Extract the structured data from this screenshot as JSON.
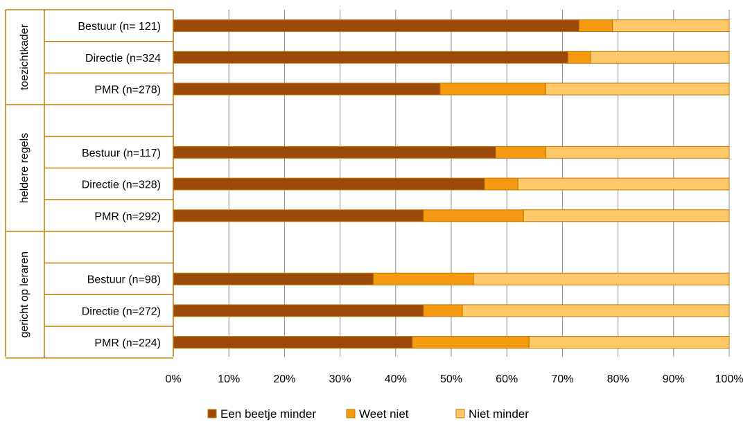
{
  "chart_data": {
    "type": "bar",
    "orientation": "horizontal",
    "stacked": true,
    "percent_stacked": true,
    "xlim": [
      0,
      100
    ],
    "x_ticks": [
      "0%",
      "10%",
      "20%",
      "30%",
      "40%",
      "50%",
      "60%",
      "70%",
      "80%",
      "90%",
      "100%"
    ],
    "grid": true,
    "legend_position": "bottom",
    "groups": [
      {
        "label": "toezichtkader",
        "rows": [
          0,
          1,
          2
        ]
      },
      {
        "label": "heldere regels",
        "rows": [
          4,
          5,
          6
        ]
      },
      {
        "label": "gericht op leraren",
        "rows": [
          8,
          9,
          10
        ]
      }
    ],
    "categories": [
      "Bestuur (n= 121)",
      "Directie (n=324",
      "PMR (n=278)",
      "",
      "Bestuur (n=117)",
      "Directie (n=328)",
      "PMR (n=292)",
      "",
      "Bestuur (n=98)",
      "Directie (n=272)",
      "PMR (n=224)"
    ],
    "series": [
      {
        "name": "Een beetje minder",
        "color": "#9C4A0A",
        "values": [
          73,
          71,
          48,
          null,
          58,
          56,
          45,
          null,
          36,
          45,
          43
        ]
      },
      {
        "name": "Weet niet",
        "color": "#F59A10",
        "values": [
          6,
          4,
          19,
          null,
          9,
          6,
          18,
          null,
          18,
          7,
          21
        ]
      },
      {
        "name": "Niet minder",
        "color": "#FFC96A",
        "values": [
          21,
          25,
          33,
          null,
          33,
          38,
          37,
          null,
          46,
          48,
          36
        ]
      }
    ],
    "border_color": "#C07800"
  }
}
